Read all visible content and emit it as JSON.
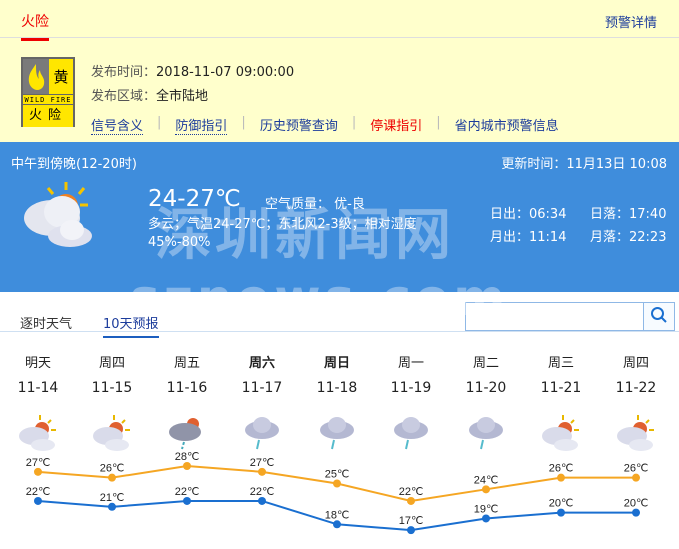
{
  "warning": {
    "tab": "火险",
    "detail_link": "预警详情",
    "badge": {
      "level": "黄",
      "english": "WILD FIRE",
      "name": "火险"
    },
    "publish_time_label": "发布时间：",
    "publish_time": "2018-11-07 09:00:00",
    "area_label": "发布区域：",
    "area": "全市陆地",
    "links": [
      "信号含义",
      "防御指引",
      "历史预警查询",
      "停课指引",
      "省内城市预警信息"
    ]
  },
  "current": {
    "period": "中午到傍晚(12-20时)",
    "update": "更新时间：11月13日 10:08",
    "temp": "24-27℃",
    "air_quality": "空气质量：  优-良",
    "description": "多云；气温24-27℃；东北风2-3级；相对湿度45%-80%",
    "sunrise": "日出：06:34",
    "sunset": "日落：17:40",
    "moonrise": "月出：11:14",
    "moonset": "月落：22:23",
    "icon": "partly-cloudy-icon"
  },
  "watermark": {
    "line1": "深圳新闻网",
    "line2": "sznews.com"
  },
  "tabs": [
    "逐时天气",
    "10天预报"
  ],
  "active_tab": 1,
  "search": {
    "value": "",
    "placeholder": ""
  },
  "colors": {
    "high": "#f5a623",
    "low": "#1a6fd0",
    "accent_blue": "#3f8ddc",
    "warning_bg": "#ffffcc"
  },
  "forecast": [
    {
      "week": "明天",
      "date": "11-14",
      "icon": "partly-cloudy",
      "bold": false
    },
    {
      "week": "周四",
      "date": "11-15",
      "icon": "partly-cloudy",
      "bold": false
    },
    {
      "week": "周五",
      "date": "11-16",
      "icon": "cloudy-shower",
      "bold": false
    },
    {
      "week": "周六",
      "date": "11-17",
      "icon": "light-rain",
      "bold": true
    },
    {
      "week": "周日",
      "date": "11-18",
      "icon": "light-rain",
      "bold": true
    },
    {
      "week": "周一",
      "date": "11-19",
      "icon": "light-rain",
      "bold": false
    },
    {
      "week": "周二",
      "date": "11-20",
      "icon": "light-rain",
      "bold": false
    },
    {
      "week": "周三",
      "date": "11-21",
      "icon": "partly-cloudy",
      "bold": false
    },
    {
      "week": "周四",
      "date": "11-22",
      "icon": "partly-cloudy",
      "bold": false
    }
  ],
  "chart_data": {
    "type": "line",
    "categories": [
      "11-14",
      "11-15",
      "11-16",
      "11-17",
      "11-18",
      "11-19",
      "11-20",
      "11-21",
      "11-22"
    ],
    "unit": "℃",
    "series": [
      {
        "values": [
          27,
          26,
          28,
          27,
          25,
          22,
          24,
          26,
          26
        ],
        "color": "#f5a623"
      },
      {
        "values": [
          22,
          21,
          22,
          22,
          18,
          17,
          19,
          20,
          20
        ],
        "color": "#1a6fd0"
      }
    ]
  }
}
